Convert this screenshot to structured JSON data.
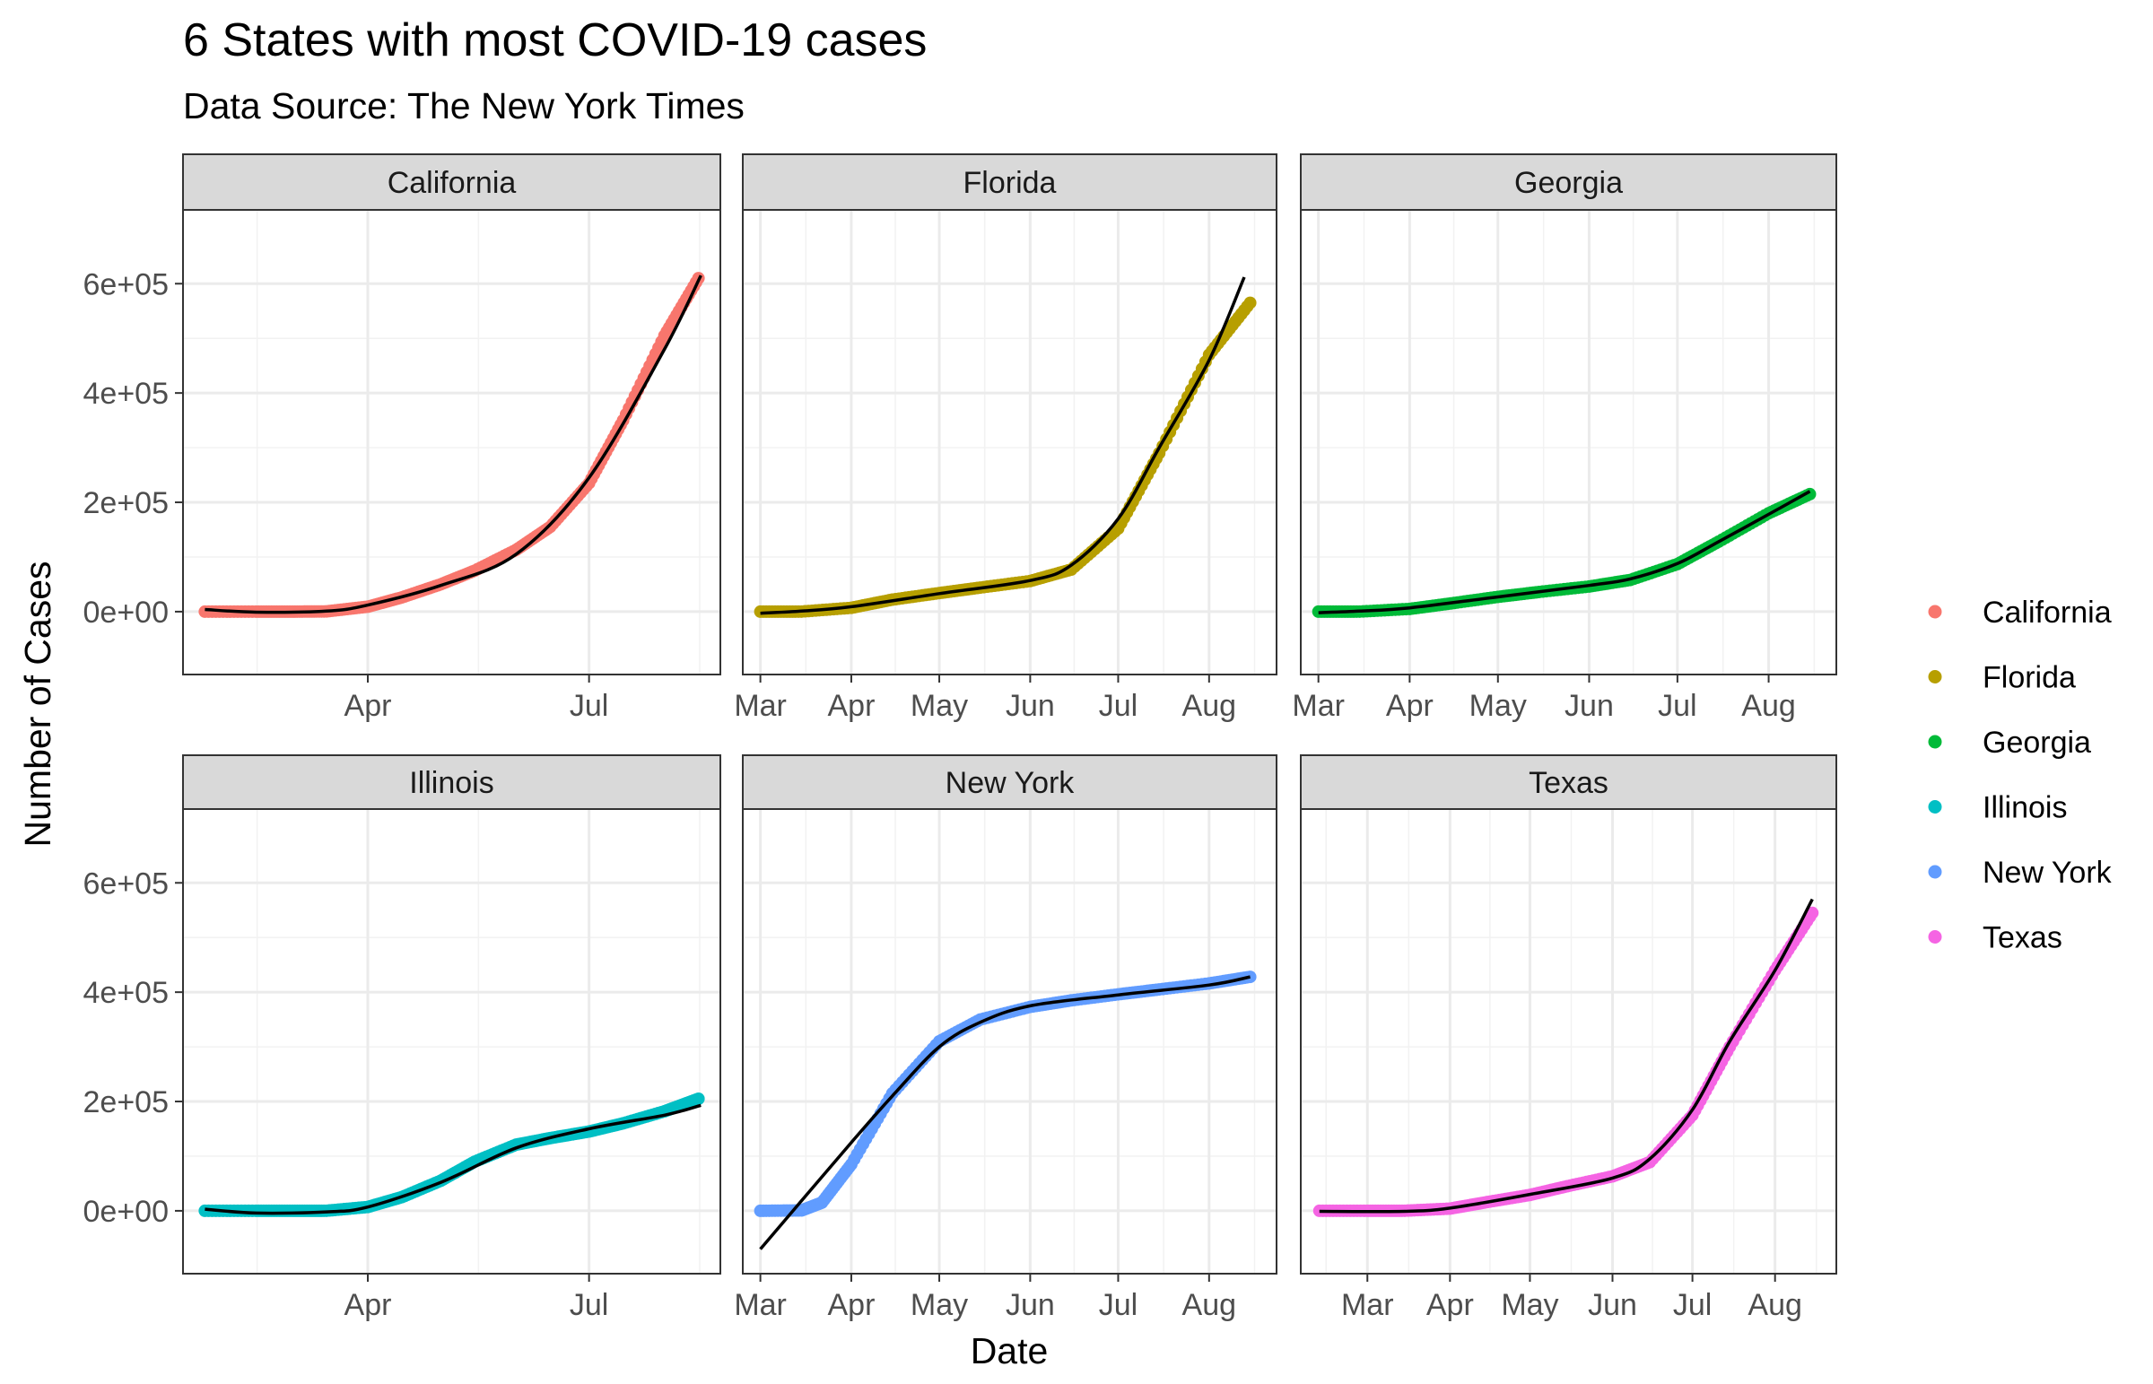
{
  "chart_data": {
    "type": "scatter",
    "title": "6 States with most COVID-19 cases",
    "subtitle": "Data Source: The New York Times",
    "xlabel": "Date",
    "ylabel": "Number of Cases",
    "grid": true,
    "legend_position": "right",
    "yticks": [
      0,
      200000,
      400000,
      600000
    ],
    "ytick_labels": [
      "0e+00",
      "2e+05",
      "4e+05",
      "6e+05"
    ],
    "ylim": [
      -115000,
      735000
    ],
    "series": [
      {
        "name": "California",
        "color": "#F8766D",
        "xlim": [
          "2020-01-16",
          "2020-08-24"
        ],
        "xticks": [
          "2020-04-01",
          "2020-07-01"
        ],
        "xtick_labels": [
          "Apr",
          "Jul"
        ],
        "points": [
          [
            "2020-01-25",
            0
          ],
          [
            "2020-02-15",
            0
          ],
          [
            "2020-03-01",
            50
          ],
          [
            "2020-03-15",
            400
          ],
          [
            "2020-04-01",
            9000
          ],
          [
            "2020-04-15",
            26000
          ],
          [
            "2020-05-01",
            50000
          ],
          [
            "2020-05-15",
            75000
          ],
          [
            "2020-06-01",
            113000
          ],
          [
            "2020-06-15",
            155000
          ],
          [
            "2020-07-01",
            235000
          ],
          [
            "2020-07-15",
            350000
          ],
          [
            "2020-08-01",
            505000
          ],
          [
            "2020-08-15",
            610000
          ]
        ],
        "fit": [
          [
            "2020-01-25",
            4000
          ],
          [
            "2020-02-15",
            -1000
          ],
          [
            "2020-03-15",
            1000
          ],
          [
            "2020-04-01",
            12000
          ],
          [
            "2020-05-01",
            48000
          ],
          [
            "2020-06-01",
            105000
          ],
          [
            "2020-07-01",
            245000
          ],
          [
            "2020-08-01",
            480000
          ],
          [
            "2020-08-16",
            615000
          ]
        ]
      },
      {
        "name": "Florida",
        "color": "#B79F00",
        "xlim": [
          "2020-02-24",
          "2020-08-24"
        ],
        "xticks": [
          "2020-03-01",
          "2020-04-01",
          "2020-05-01",
          "2020-06-01",
          "2020-07-01",
          "2020-08-01"
        ],
        "xtick_labels": [
          "Mar",
          "Apr",
          "May",
          "Jun",
          "Jul",
          "Aug"
        ],
        "points": [
          [
            "2020-03-01",
            0
          ],
          [
            "2020-03-15",
            100
          ],
          [
            "2020-04-01",
            7000
          ],
          [
            "2020-04-15",
            22000
          ],
          [
            "2020-05-01",
            34000
          ],
          [
            "2020-05-15",
            44000
          ],
          [
            "2020-06-01",
            56000
          ],
          [
            "2020-06-15",
            77000
          ],
          [
            "2020-07-01",
            152000
          ],
          [
            "2020-07-15",
            290000
          ],
          [
            "2020-08-01",
            470000
          ],
          [
            "2020-08-15",
            565000
          ]
        ],
        "fit": [
          [
            "2020-03-01",
            -3000
          ],
          [
            "2020-03-15",
            1000
          ],
          [
            "2020-04-01",
            9000
          ],
          [
            "2020-05-01",
            33000
          ],
          [
            "2020-06-01",
            57000
          ],
          [
            "2020-06-15",
            85000
          ],
          [
            "2020-07-01",
            170000
          ],
          [
            "2020-07-15",
            300000
          ],
          [
            "2020-08-01",
            460000
          ],
          [
            "2020-08-13",
            612000
          ]
        ]
      },
      {
        "name": "Georgia",
        "color": "#00BA38",
        "xlim": [
          "2020-02-24",
          "2020-08-24"
        ],
        "xticks": [
          "2020-03-01",
          "2020-04-01",
          "2020-05-01",
          "2020-06-01",
          "2020-07-01",
          "2020-08-01"
        ],
        "xtick_labels": [
          "Mar",
          "Apr",
          "May",
          "Jun",
          "Jul",
          "Aug"
        ],
        "points": [
          [
            "2020-03-01",
            0
          ],
          [
            "2020-03-15",
            100
          ],
          [
            "2020-04-01",
            5000
          ],
          [
            "2020-04-15",
            15000
          ],
          [
            "2020-05-01",
            27000
          ],
          [
            "2020-05-15",
            36000
          ],
          [
            "2020-06-01",
            46000
          ],
          [
            "2020-06-15",
            58000
          ],
          [
            "2020-07-01",
            87000
          ],
          [
            "2020-07-15",
            128000
          ],
          [
            "2020-08-01",
            180000
          ],
          [
            "2020-08-15",
            215000
          ]
        ],
        "fit": [
          [
            "2020-03-01",
            -2000
          ],
          [
            "2020-03-15",
            1000
          ],
          [
            "2020-04-01",
            7000
          ],
          [
            "2020-05-01",
            27000
          ],
          [
            "2020-06-01",
            48000
          ],
          [
            "2020-06-15",
            60000
          ],
          [
            "2020-07-01",
            88000
          ],
          [
            "2020-07-15",
            128000
          ],
          [
            "2020-08-01",
            178000
          ],
          [
            "2020-08-15",
            220000
          ]
        ]
      },
      {
        "name": "Illinois",
        "color": "#00BFC4",
        "xlim": [
          "2020-01-16",
          "2020-08-24"
        ],
        "xticks": [
          "2020-04-01",
          "2020-07-01"
        ],
        "xtick_labels": [
          "Apr",
          "Jul"
        ],
        "points": [
          [
            "2020-01-25",
            0
          ],
          [
            "2020-02-15",
            0
          ],
          [
            "2020-03-01",
            10
          ],
          [
            "2020-03-15",
            100
          ],
          [
            "2020-04-01",
            7000
          ],
          [
            "2020-04-15",
            25000
          ],
          [
            "2020-05-01",
            55000
          ],
          [
            "2020-05-15",
            90000
          ],
          [
            "2020-06-01",
            121000
          ],
          [
            "2020-06-15",
            133000
          ],
          [
            "2020-07-01",
            145000
          ],
          [
            "2020-07-15",
            160000
          ],
          [
            "2020-08-01",
            182000
          ],
          [
            "2020-08-15",
            205000
          ]
        ],
        "fit": [
          [
            "2020-01-25",
            3000
          ],
          [
            "2020-02-15",
            -4000
          ],
          [
            "2020-03-15",
            -2000
          ],
          [
            "2020-04-01",
            7000
          ],
          [
            "2020-05-01",
            52000
          ],
          [
            "2020-06-01",
            115000
          ],
          [
            "2020-07-01",
            150000
          ],
          [
            "2020-08-01",
            175000
          ],
          [
            "2020-08-16",
            193000
          ]
        ]
      },
      {
        "name": "New York",
        "color": "#619CFF",
        "xlim": [
          "2020-02-24",
          "2020-08-24"
        ],
        "xticks": [
          "2020-03-01",
          "2020-04-01",
          "2020-05-01",
          "2020-06-01",
          "2020-07-01",
          "2020-08-01"
        ],
        "xtick_labels": [
          "Mar",
          "Apr",
          "May",
          "Jun",
          "Jul",
          "Aug"
        ],
        "points": [
          [
            "2020-03-01",
            0
          ],
          [
            "2020-03-15",
            700
          ],
          [
            "2020-03-22",
            15000
          ],
          [
            "2020-04-01",
            85000
          ],
          [
            "2020-04-15",
            215000
          ],
          [
            "2020-05-01",
            310000
          ],
          [
            "2020-05-15",
            350000
          ],
          [
            "2020-06-01",
            373000
          ],
          [
            "2020-06-15",
            385000
          ],
          [
            "2020-07-01",
            396000
          ],
          [
            "2020-07-15",
            405000
          ],
          [
            "2020-08-01",
            416000
          ],
          [
            "2020-08-15",
            428000
          ]
        ],
        "fit": [
          [
            "2020-03-01",
            -70000
          ],
          [
            "2020-04-01",
            125000
          ],
          [
            "2020-04-15",
            210000
          ],
          [
            "2020-05-01",
            300000
          ],
          [
            "2020-05-15",
            345000
          ],
          [
            "2020-06-01",
            375000
          ],
          [
            "2020-07-01",
            395000
          ],
          [
            "2020-08-01",
            413000
          ],
          [
            "2020-08-15",
            428000
          ]
        ]
      },
      {
        "name": "Texas",
        "color": "#F564E3",
        "xlim": [
          "2020-02-05",
          "2020-08-24"
        ],
        "xticks": [
          "2020-03-01",
          "2020-04-01",
          "2020-05-01",
          "2020-06-01",
          "2020-07-01",
          "2020-08-01"
        ],
        "xtick_labels": [
          "Mar",
          "Apr",
          "May",
          "Jun",
          "Jul",
          "Aug"
        ],
        "points": [
          [
            "2020-02-12",
            0
          ],
          [
            "2020-03-01",
            0
          ],
          [
            "2020-03-15",
            100
          ],
          [
            "2020-04-01",
            4000
          ],
          [
            "2020-04-15",
            16000
          ],
          [
            "2020-05-01",
            29000
          ],
          [
            "2020-05-15",
            45000
          ],
          [
            "2020-06-01",
            63000
          ],
          [
            "2020-06-15",
            89000
          ],
          [
            "2020-07-01",
            175000
          ],
          [
            "2020-07-15",
            300000
          ],
          [
            "2020-08-01",
            440000
          ],
          [
            "2020-08-15",
            545000
          ]
        ],
        "fit": [
          [
            "2020-02-12",
            -1000
          ],
          [
            "2020-03-15",
            -1000
          ],
          [
            "2020-04-01",
            5000
          ],
          [
            "2020-05-01",
            30000
          ],
          [
            "2020-06-01",
            60000
          ],
          [
            "2020-06-15",
            95000
          ],
          [
            "2020-07-01",
            185000
          ],
          [
            "2020-07-15",
            310000
          ],
          [
            "2020-08-01",
            440000
          ],
          [
            "2020-08-15",
            570000
          ]
        ]
      }
    ]
  }
}
